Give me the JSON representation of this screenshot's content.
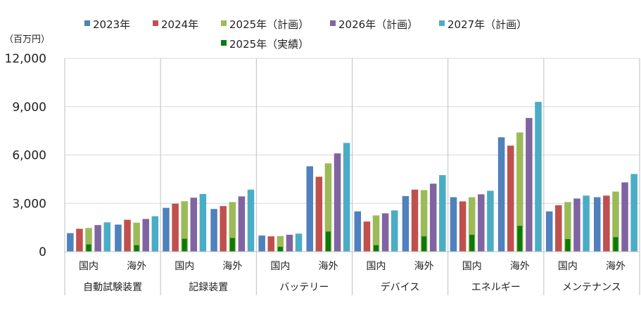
{
  "chart_data": {
    "type": "bar",
    "unit_label": "（百万円）",
    "ylim": [
      0,
      12000
    ],
    "y_ticks": [
      "0",
      "3,000",
      "6,000",
      "9,000",
      "12,000"
    ],
    "y_tick_values": [
      0,
      3000,
      6000,
      9000,
      12000
    ],
    "groups": [
      {
        "name": "自動試験装置",
        "subcategories": [
          "国内",
          "海外"
        ]
      },
      {
        "name": "記録装置",
        "subcategories": [
          "国内",
          "海外"
        ]
      },
      {
        "name": "バッテリー",
        "subcategories": [
          "国内",
          "海外"
        ]
      },
      {
        "name": "デバイス",
        "subcategories": [
          "国内",
          "海外"
        ]
      },
      {
        "name": "エネルギー",
        "subcategories": [
          "国内",
          "海外"
        ]
      },
      {
        "name": "メンテナンス",
        "subcategories": [
          "国内",
          "海外"
        ]
      }
    ],
    "series": [
      {
        "name": "2023年",
        "color": "#4f81bd",
        "values": [
          1150,
          1680,
          2720,
          2650,
          1000,
          5300,
          2500,
          3450,
          3380,
          7100,
          2500,
          3380
        ]
      },
      {
        "name": "2024年",
        "color": "#c0504d",
        "values": [
          1420,
          1980,
          2980,
          2830,
          950,
          4650,
          1870,
          3850,
          3120,
          6580,
          2880,
          3480
        ]
      },
      {
        "name": "2025年（計画）",
        "color": "#9bbb59",
        "values": [
          1470,
          1800,
          3130,
          3080,
          970,
          5480,
          2250,
          3820,
          3380,
          7400,
          3080,
          3730
        ]
      },
      {
        "name": "2026年（計画）",
        "color": "#8064a2",
        "values": [
          1650,
          2030,
          3350,
          3430,
          1050,
          6100,
          2380,
          4220,
          3560,
          8300,
          3300,
          4300
        ]
      },
      {
        "name": "2027年（計画）",
        "color": "#4bacc6",
        "values": [
          1820,
          2200,
          3580,
          3850,
          1120,
          6750,
          2560,
          4750,
          3780,
          9300,
          3480,
          4820
        ]
      }
    ],
    "overlay_series": {
      "name": "2025年（実績）",
      "color": "#0a7a0a",
      "overlays_series_index": 2,
      "values": [
        450,
        400,
        800,
        850,
        300,
        1250,
        400,
        950,
        1050,
        1600,
        780,
        900
      ]
    },
    "gridlines": "horizontal",
    "legend_position": "top",
    "legend_order": [
      "2023年",
      "2024年",
      "2025年（計画）",
      "2026年（計画）",
      "2027年（計画）",
      "2025年（実績）"
    ]
  }
}
